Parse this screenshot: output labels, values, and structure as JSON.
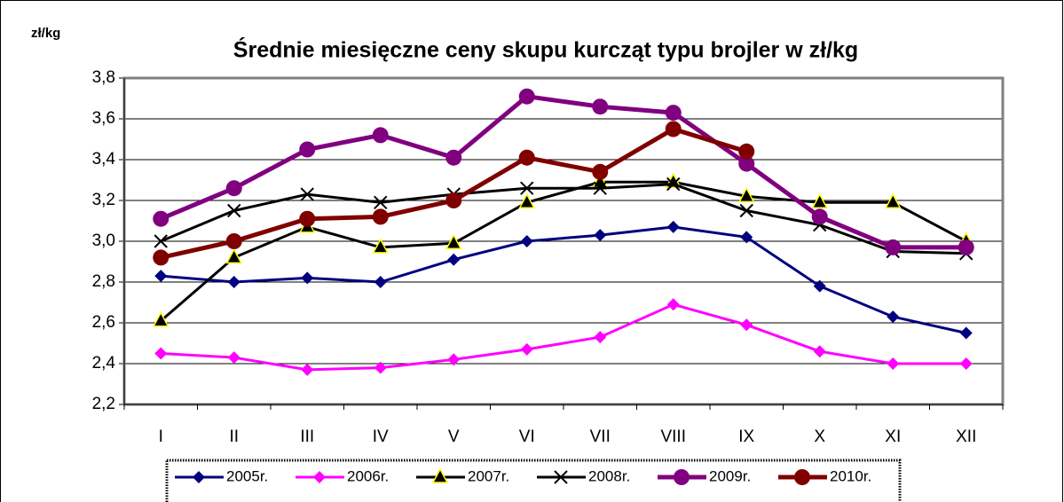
{
  "chart_data": {
    "type": "line",
    "title": "Średnie miesięczne ceny skupu kurcząt typu brojler w zł/kg",
    "y_label": "zł/kg",
    "categories": [
      "I",
      "II",
      "III",
      "IV",
      "V",
      "VI",
      "VII",
      "VIII",
      "IX",
      "X",
      "XI",
      "XII"
    ],
    "series": [
      {
        "name": "2005r.",
        "color": "#000080",
        "marker": "diamond",
        "values": [
          2.83,
          2.8,
          2.82,
          2.8,
          2.91,
          3.0,
          3.03,
          3.07,
          3.02,
          2.78,
          2.63,
          2.55
        ]
      },
      {
        "name": "2006r.",
        "color": "#ff00ff",
        "marker": "diamond",
        "values": [
          2.45,
          2.43,
          2.37,
          2.38,
          2.42,
          2.47,
          2.53,
          2.69,
          2.59,
          2.46,
          2.4,
          2.4
        ]
      },
      {
        "name": "2007r.",
        "color": "#000000",
        "marker": "triangle",
        "values": [
          2.61,
          2.92,
          3.07,
          2.97,
          2.99,
          3.19,
          3.29,
          3.29,
          3.22,
          3.19,
          3.19,
          3.0
        ]
      },
      {
        "name": "2008r.",
        "color": "#000000",
        "marker": "x",
        "values": [
          3.0,
          3.15,
          3.23,
          3.19,
          3.23,
          3.26,
          3.26,
          3.28,
          3.15,
          3.08,
          2.95,
          2.94
        ]
      },
      {
        "name": "2009r.",
        "color": "#800080",
        "marker": "circle",
        "values": [
          3.11,
          3.26,
          3.45,
          3.52,
          3.41,
          3.71,
          3.66,
          3.63,
          3.38,
          3.12,
          2.97,
          2.97
        ]
      },
      {
        "name": "2010r.",
        "color": "#800000",
        "marker": "circle",
        "values": [
          2.92,
          3.0,
          3.11,
          3.12,
          3.2,
          3.41,
          3.34,
          3.55,
          3.44,
          null,
          null,
          null
        ]
      }
    ],
    "ylim": [
      2.2,
      3.8
    ],
    "yticks": [
      {
        "value": 2.2,
        "label": "2,2"
      },
      {
        "value": 2.4,
        "label": "2,4"
      },
      {
        "value": 2.6,
        "label": "2,6"
      },
      {
        "value": 2.8,
        "label": "2,8"
      },
      {
        "value": 3.0,
        "label": "3,0"
      },
      {
        "value": 3.2,
        "label": "3,2"
      },
      {
        "value": 3.4,
        "label": "3,4"
      },
      {
        "value": 3.6,
        "label": "3,6"
      },
      {
        "value": 3.8,
        "label": "3,8"
      }
    ],
    "grid": true
  }
}
